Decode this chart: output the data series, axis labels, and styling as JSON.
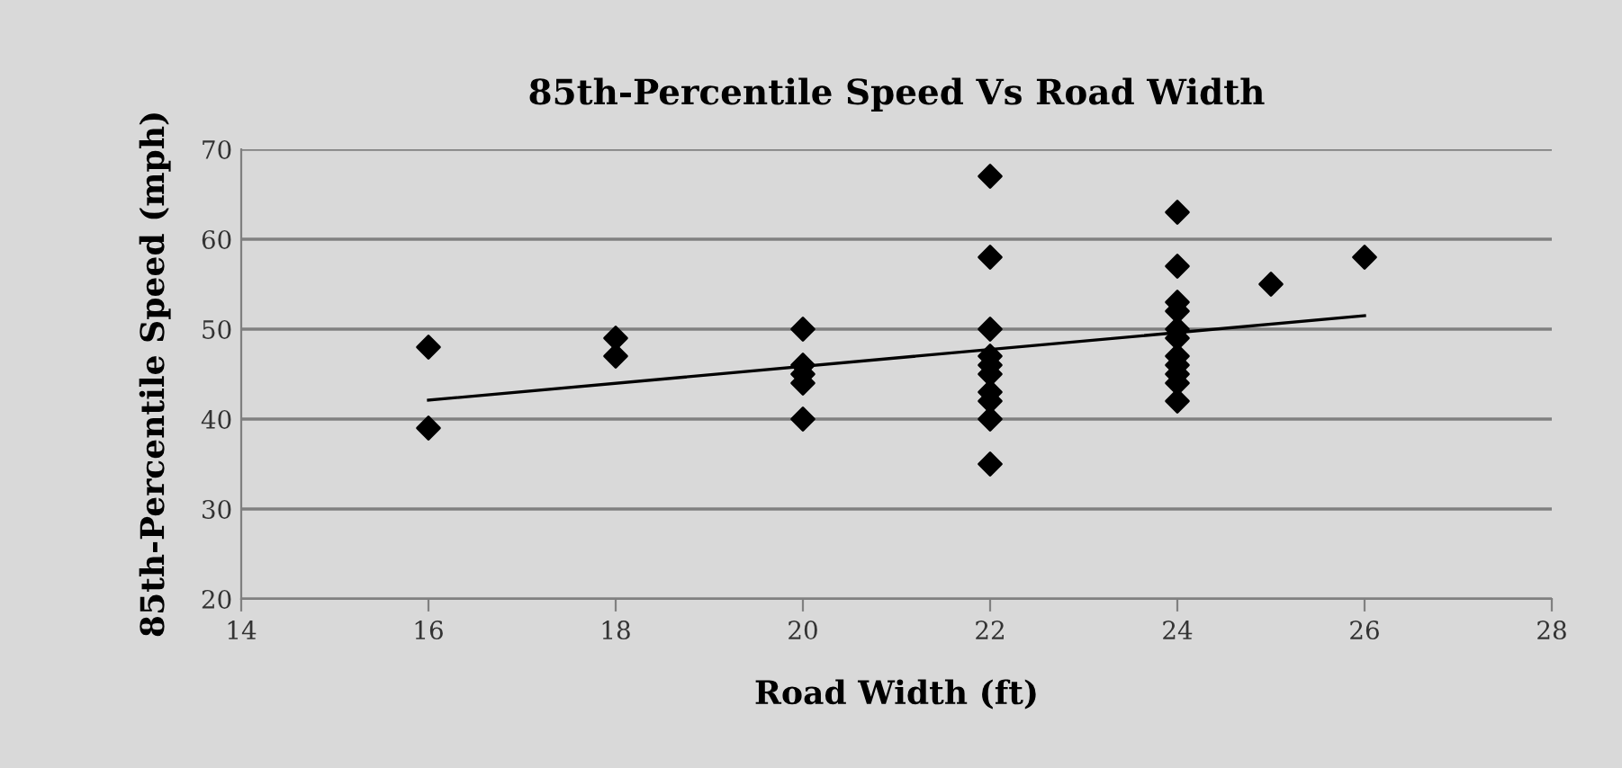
{
  "chart_data": {
    "type": "scatter",
    "title": "85th-Percentile Speed Vs Road Width",
    "xlabel": "Road Width (ft)",
    "ylabel": "85th-Percentile Speed (mph)",
    "series": [
      {
        "color": "#000000",
        "marker": "diamond",
        "x": [
          16,
          16,
          18,
          18,
          20,
          20,
          20,
          20,
          20,
          22,
          22,
          22,
          22,
          22,
          22,
          22,
          22,
          22,
          22,
          24,
          24,
          24,
          24,
          24,
          24,
          24,
          24,
          24,
          24,
          24,
          25,
          26
        ],
        "values": [
          48,
          39,
          49,
          47,
          50,
          46,
          45,
          44,
          40,
          67,
          58,
          50,
          47,
          46,
          45,
          43,
          42,
          40,
          35,
          63,
          57,
          53,
          52,
          50,
          49,
          47,
          46,
          45,
          44,
          42,
          55,
          58
        ]
      },
      {
        "type": "line",
        "color": "#000000",
        "marker": "none",
        "line_style": "solid",
        "x": [
          16,
          26
        ],
        "values": [
          42.1,
          51.5
        ]
      }
    ],
    "xlim": [
      14,
      28
    ],
    "xticks": [
      14,
      16,
      18,
      20,
      22,
      24,
      26,
      28
    ],
    "ylim": [
      20,
      70
    ],
    "yticks": [
      20,
      30,
      40,
      50,
      60,
      70
    ],
    "grid": "y",
    "legend": false
  }
}
